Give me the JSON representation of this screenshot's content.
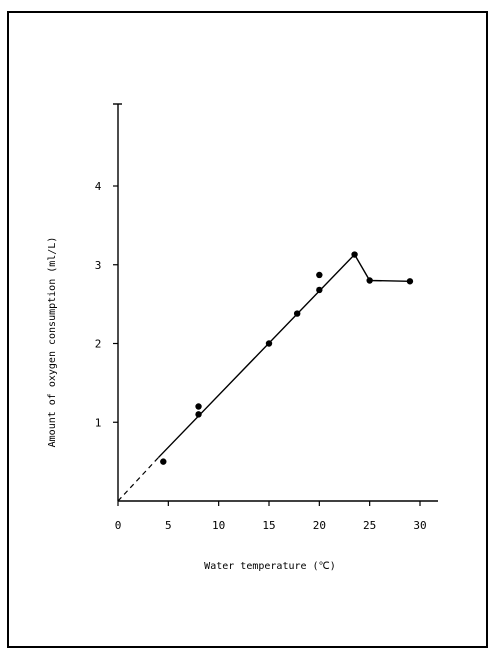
{
  "chart_data": {
    "type": "scatter",
    "xlabel": "Water temperature (℃)",
    "ylabel": "Amount of oxygen consumption (ml/L)",
    "xlim": [
      0,
      30
    ],
    "ylim": [
      0,
      5
    ],
    "x_ticks": [
      0,
      5,
      10,
      15,
      20,
      25,
      30
    ],
    "y_ticks": [
      1,
      2,
      3,
      4
    ],
    "grid": false,
    "points": [
      {
        "x": 4.5,
        "y": 0.5
      },
      {
        "x": 8.0,
        "y": 1.2
      },
      {
        "x": 8.0,
        "y": 1.1
      },
      {
        "x": 15.0,
        "y": 2.0
      },
      {
        "x": 17.8,
        "y": 2.38
      },
      {
        "x": 20.0,
        "y": 2.87
      },
      {
        "x": 20.0,
        "y": 2.68
      },
      {
        "x": 23.5,
        "y": 3.13
      },
      {
        "x": 25.0,
        "y": 2.8
      },
      {
        "x": 29.0,
        "y": 2.79
      }
    ],
    "dashed_extension": [
      [
        0,
        0
      ],
      [
        4.0,
        0.55
      ]
    ],
    "fit_line": [
      [
        4.0,
        0.55
      ],
      [
        23.5,
        3.13
      ],
      [
        25.0,
        2.8
      ],
      [
        29.0,
        2.79
      ]
    ]
  }
}
